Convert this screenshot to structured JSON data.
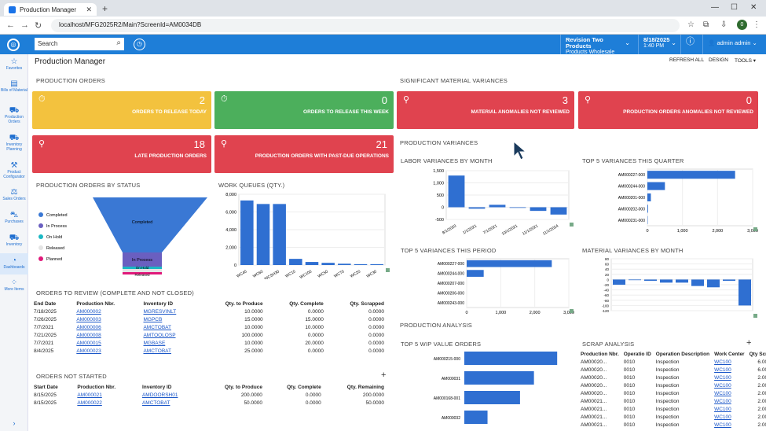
{
  "browser": {
    "tab_title": "Production Manager",
    "url": "localhost/MFG2025R2/Main?ScreenId=AM0034DB",
    "profile_initial": "0"
  },
  "topbar": {
    "search_placeholder": "Search",
    "company": "Revision Two Products",
    "company_sub": "Products Wholesale",
    "date": "8/18/2025",
    "time": "1:40 PM",
    "user": "admin admin"
  },
  "sidebar": [
    "Favorites",
    "Bills of Material",
    "Production Orders",
    "Inventory Planning",
    "Product Configurator",
    "Sales Orders",
    "Purchases",
    "Inventory",
    "Dashboards",
    "More Items"
  ],
  "page": {
    "title": "Production Manager",
    "refresh": "REFRESH ALL",
    "design": "DESIGN",
    "tools": "TOOLS"
  },
  "sections": {
    "production_orders": "PRODUCTION ORDERS",
    "significant_variances": "SIGNIFICANT MATERIAL VARIANCES",
    "production_variances": "PRODUCTION VARIANCES",
    "by_status": "PRODUCTION ORDERS BY STATUS",
    "work_queues": "WORK QUEUES (QTY.)",
    "labor_variances": "LABOR VARIANCES BY MONTH",
    "top5_quarter": "TOP 5 VARIANCES THIS QUARTER",
    "top5_period": "TOP 5 VARIANCES THIS PERIOD",
    "material_by_month": "MATERIAL VARIANCES BY MONTH",
    "orders_to_review": "ORDERS TO REVIEW (COMPLETE AND NOT CLOSED)",
    "orders_not_started": "ORDERS NOT STARTED",
    "production_analysis": "PRODUCTION ANALYSIS",
    "top5_wip": "TOP 5 WIP VALUE ORDERS",
    "scrap_analysis": "SCRAP ANALYSIS"
  },
  "tiles": [
    {
      "num": "2",
      "label": "ORDERS TO RELEASE TODAY"
    },
    {
      "num": "0",
      "label": "ORDERS TO RELEASE THIS WEEK"
    },
    {
      "num": "3",
      "label": "MATERIAL ANOMALIES NOT REVIEWED"
    },
    {
      "num": "0",
      "label": "PRODUCTION ORDERS ANOMALIES NOT REVIEWED"
    },
    {
      "num": "18",
      "label": "LATE PRODUCTION ORDERS"
    },
    {
      "num": "21",
      "label": "PRODUCTION ORDERS WITH PAST-DUE OPERATIONS"
    }
  ],
  "colors": {
    "accent": "#1e7ed8",
    "tile_yellow": "#f3c23e",
    "tile_green": "#4caf5c",
    "tile_red": "#e0434f",
    "bar": "#2f6fd1"
  },
  "funnel": {
    "legend": [
      "Completed",
      "In Process",
      "On Hold",
      "Released",
      "Planned"
    ],
    "colors": [
      "#3a78d4",
      "#6a5fc0",
      "#1bb8c4",
      "#e4e4e4",
      "#e0197a"
    ],
    "labels": [
      "Completed",
      "In Process",
      "On Hold",
      "Released"
    ]
  },
  "chart_data": [
    {
      "type": "bar",
      "title": "WORK QUEUES (QTY.)",
      "categories": [
        "WC40",
        "WC60",
        "WCSH30",
        "WC10",
        "WC100",
        "WC50",
        "WC70",
        "WC20",
        "WC30"
      ],
      "values": [
        7300,
        6900,
        6900,
        700,
        350,
        250,
        150,
        100,
        100
      ],
      "ylim": [
        0,
        8000
      ],
      "yticks": [
        "0",
        "2,000",
        "4,000",
        "6,000",
        "8,000"
      ]
    },
    {
      "type": "bar",
      "title": "LABOR VARIANCES BY MONTH",
      "categories": [
        "8/1/2020",
        "1/1/2021",
        "7/1/2021",
        "10/1/2021",
        "11/1/2021",
        "11/1/2024"
      ],
      "values": [
        1300,
        -60,
        100,
        -20,
        -150,
        -300
      ],
      "ylim": [
        -500,
        1500
      ],
      "yticks": [
        "1,500",
        "1,000",
        "500",
        "0",
        "-500"
      ]
    },
    {
      "type": "bar",
      "title": "TOP 5 VARIANCES THIS QUARTER",
      "categories": [
        "AM000227-000",
        "AM000244-000",
        "AM000201-000",
        "AM000202-000",
        "AM000231-000"
      ],
      "values": [
        2500,
        500,
        100,
        20,
        10
      ],
      "xlim": [
        0,
        3000
      ],
      "xticks": [
        "0",
        "1,000",
        "2,000",
        "3,000"
      ]
    },
    {
      "type": "bar",
      "title": "TOP 5 VARIANCES THIS PERIOD",
      "categories": [
        "AM000227-000",
        "AM000244-000",
        "AM000207-000",
        "AM000206-000",
        "AM000243-000"
      ],
      "values": [
        2500,
        500,
        0,
        0,
        0
      ],
      "xlim": [
        0,
        3000
      ],
      "xticks": [
        "0",
        "1,000",
        "2,000",
        "3,000"
      ]
    },
    {
      "type": "bar",
      "title": "MATERIAL VARIANCES BY MONTH",
      "values": [
        -20,
        -2,
        -5,
        -12,
        -12,
        -25,
        -30,
        -5,
        -100
      ],
      "ylim": [
        -120,
        80
      ],
      "yticks": [
        "80",
        "60",
        "40",
        "20",
        "0",
        "-20",
        "-40",
        "-60",
        "-80",
        "-100",
        "-120"
      ]
    },
    {
      "type": "bar",
      "title": "TOP 5 WIP VALUE ORDERS",
      "categories": [
        "AM000215-000",
        "AM000031",
        "AM000168-001",
        "AM000032"
      ],
      "values": [
        100,
        75,
        60,
        25
      ]
    }
  ],
  "orders_review": {
    "headers": [
      "End Date",
      "Production Nbr.",
      "Inventory ID",
      "Qty. to Produce",
      "Qty. Complete",
      "Qty. Scrapped"
    ],
    "rows": [
      [
        "7/18/2025",
        "AM000002",
        "MGRESVINLT",
        "10.0000",
        "0.0000",
        "0.0000"
      ],
      [
        "7/26/2025",
        "AM000003",
        "MGPCB",
        "15.0000",
        "15.0000",
        "0.0000"
      ],
      [
        "7/7/2021",
        "AM000006",
        "AMCTOBAT",
        "10.0000",
        "10.0000",
        "0.0000"
      ],
      [
        "7/21/2025",
        "AM000008",
        "AMTOOLOSP",
        "100.0000",
        "0.0000",
        "0.0000"
      ],
      [
        "7/7/2021",
        "AM000015",
        "MGBASE",
        "10.0000",
        "20.0000",
        "0.0000"
      ],
      [
        "8/4/2025",
        "AM000023",
        "AMCTOBAT",
        "25.0000",
        "0.0000",
        "0.0000"
      ]
    ]
  },
  "orders_not_started": {
    "headers": [
      "Start Date",
      "Production Nbr.",
      "Inventory ID",
      "Qty. to Produce",
      "Qty. Complete",
      "Qty. Remaining"
    ],
    "rows": [
      [
        "8/15/2025",
        "AM000021",
        "AMDOORSH01",
        "200.0000",
        "0.0000",
        "200.0000"
      ],
      [
        "8/15/2025",
        "AM000022",
        "AMCTOBAT",
        "50.0000",
        "0.0000",
        "50.0000"
      ]
    ]
  },
  "scrap": {
    "headers": [
      "Production Nbr.",
      "Operatio ID",
      "Operation Description",
      "Work Center",
      "Qty Scrap"
    ],
    "rows": [
      [
        "AM00020...",
        "0010",
        "Inspection",
        "WC100",
        "6.0000"
      ],
      [
        "AM00020...",
        "0010",
        "Inspection",
        "WC100",
        "6.0000"
      ],
      [
        "AM00020...",
        "0010",
        "Inspection",
        "WC100",
        "2.0000"
      ],
      [
        "AM00020...",
        "0010",
        "Inspection",
        "WC100",
        "2.0000"
      ],
      [
        "AM00020...",
        "0010",
        "Inspection",
        "WC100",
        "2.0000"
      ],
      [
        "AM00021...",
        "0010",
        "Inspection",
        "WC100",
        "2.0000"
      ],
      [
        "AM00021...",
        "0010",
        "Inspection",
        "WC100",
        "2.0000"
      ],
      [
        "AM00021...",
        "0010",
        "Inspection",
        "WC100",
        "2.0000"
      ],
      [
        "AM00021...",
        "0010",
        "Inspection",
        "WC100",
        "2.0000"
      ]
    ]
  }
}
